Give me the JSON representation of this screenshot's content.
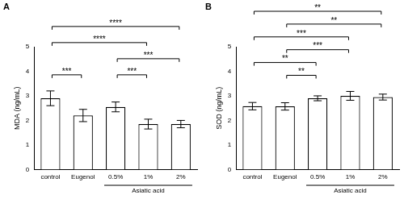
{
  "chart_data": [
    {
      "type": "bar",
      "panel_label": "A",
      "y_label": "MDA (ng/mL)",
      "categories": [
        "control",
        "Eugenol",
        "0.5%",
        "1%",
        "2%"
      ],
      "values": [
        2.9,
        2.2,
        2.55,
        1.85,
        1.85
      ],
      "errors": [
        0.3,
        0.25,
        0.2,
        0.2,
        0.15
      ],
      "color": "#ffffff",
      "ylim": [
        0,
        5
      ],
      "yticks": [
        0,
        1,
        2,
        3,
        4,
        5
      ],
      "grid": false,
      "groups": [
        {
          "label": "Asiatic acid",
          "from": "0.5%",
          "to": "2%"
        }
      ],
      "comparisons": [
        {
          "from": "control",
          "to": "Eugenol",
          "label": "***"
        },
        {
          "from": "0.5%",
          "to": "1%",
          "label": "***"
        },
        {
          "from": "0.5%",
          "to": "2%",
          "label": "***"
        },
        {
          "from": "control",
          "to": "1%",
          "label": "****"
        },
        {
          "from": "control",
          "to": "2%",
          "label": "****"
        }
      ]
    },
    {
      "type": "bar",
      "panel_label": "B",
      "y_label": "SOD (ng/mL)",
      "categories": [
        "control",
        "Eugenol",
        "0.5%",
        "1%",
        "2%"
      ],
      "values": [
        2.58,
        2.57,
        2.9,
        3.0,
        2.95
      ],
      "errors": [
        0.15,
        0.15,
        0.1,
        0.18,
        0.12
      ],
      "color": "#ffffff",
      "ylim": [
        0,
        5
      ],
      "yticks": [
        0,
        1,
        2,
        3,
        4,
        5
      ],
      "grid": false,
      "groups": [
        {
          "label": "Asiatic acid",
          "from": "0.5%",
          "to": "2%"
        }
      ],
      "comparisons": [
        {
          "from": "Eugenol",
          "to": "0.5%",
          "label": "**"
        },
        {
          "from": "control",
          "to": "0.5%",
          "label": "**"
        },
        {
          "from": "Eugenol",
          "to": "1%",
          "label": "***"
        },
        {
          "from": "control",
          "to": "1%",
          "label": "***"
        },
        {
          "from": "Eugenol",
          "to": "2%",
          "label": "**"
        },
        {
          "from": "control",
          "to": "2%",
          "label": "**"
        }
      ]
    }
  ]
}
